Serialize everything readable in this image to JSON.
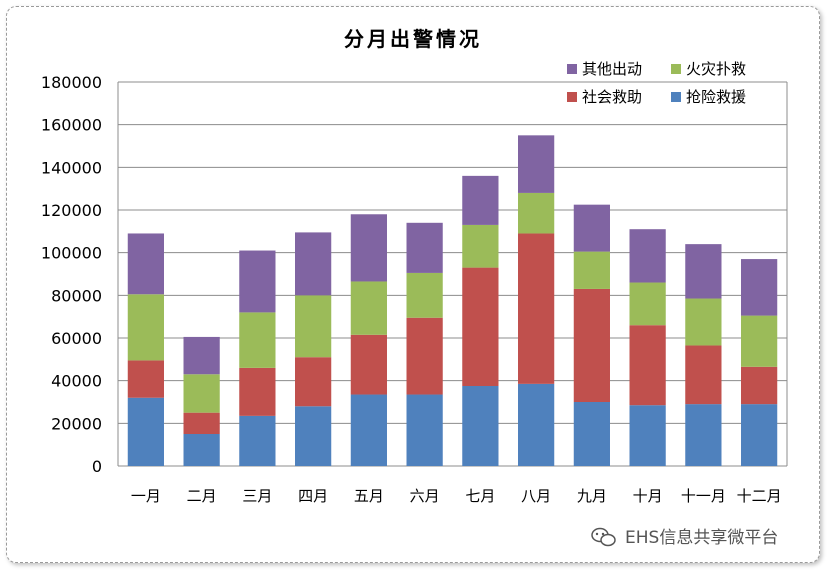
{
  "chart_data": {
    "type": "bar",
    "stacked": true,
    "title": "分月出警情况",
    "categories": [
      "一月",
      "二月",
      "三月",
      "四月",
      "五月",
      "六月",
      "七月",
      "八月",
      "九月",
      "十月",
      "十一月",
      "十二月"
    ],
    "series": [
      {
        "name": "抢险救援",
        "color": "#4f81bd",
        "values": [
          32000,
          15000,
          23500,
          28000,
          33500,
          33500,
          37500,
          38500,
          30000,
          28500,
          29000,
          29000
        ]
      },
      {
        "name": "社会救助",
        "color": "#c0504d",
        "values": [
          17500,
          10000,
          22500,
          23000,
          28000,
          36000,
          55500,
          70500,
          53000,
          37500,
          27500,
          17500
        ]
      },
      {
        "name": "火灾扑救",
        "color": "#9bbb59",
        "values": [
          31000,
          18000,
          26000,
          29000,
          25000,
          21000,
          20000,
          19000,
          17500,
          20000,
          22000,
          24000
        ]
      },
      {
        "name": "其他出动",
        "color": "#8064a2",
        "values": [
          28500,
          17500,
          29000,
          29500,
          31500,
          23500,
          23000,
          27000,
          22000,
          25000,
          25500,
          26500
        ]
      }
    ],
    "legend_order": [
      "其他出动",
      "火灾扑救",
      "社会救助",
      "抢险救援"
    ],
    "ylim": [
      0,
      180000
    ],
    "yticks": [
      0,
      20000,
      40000,
      60000,
      80000,
      100000,
      120000,
      140000,
      160000,
      180000
    ],
    "grid": true,
    "legend_position": "top-right"
  },
  "watermark": {
    "icon": "wechat-icon",
    "text": "EHS信息共享微平台"
  }
}
